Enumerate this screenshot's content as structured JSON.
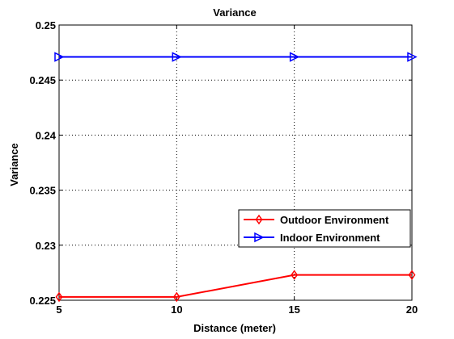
{
  "chart_data": {
    "type": "line",
    "title": "Variance",
    "xlabel": "Distance (meter)",
    "ylabel": "Variance",
    "x": [
      5,
      10,
      15,
      20
    ],
    "xlim": [
      5,
      20
    ],
    "ylim": [
      0.225,
      0.25
    ],
    "xticks": [
      "5",
      "10",
      "15",
      "20"
    ],
    "yticks": [
      "0.225",
      "0.23",
      "0.235",
      "0.24",
      "0.245",
      "0.25"
    ],
    "grid": true,
    "legend_position": "right",
    "series": [
      {
        "name": "Outdoor Environment",
        "values": [
          0.2253,
          0.2253,
          0.2273,
          0.2273
        ],
        "color": "#ff0000",
        "marker": "diamond"
      },
      {
        "name": "Indoor Environment",
        "values": [
          0.2471,
          0.2471,
          0.2471,
          0.2471
        ],
        "color": "#0000ff",
        "marker": "triangle-right"
      }
    ]
  }
}
